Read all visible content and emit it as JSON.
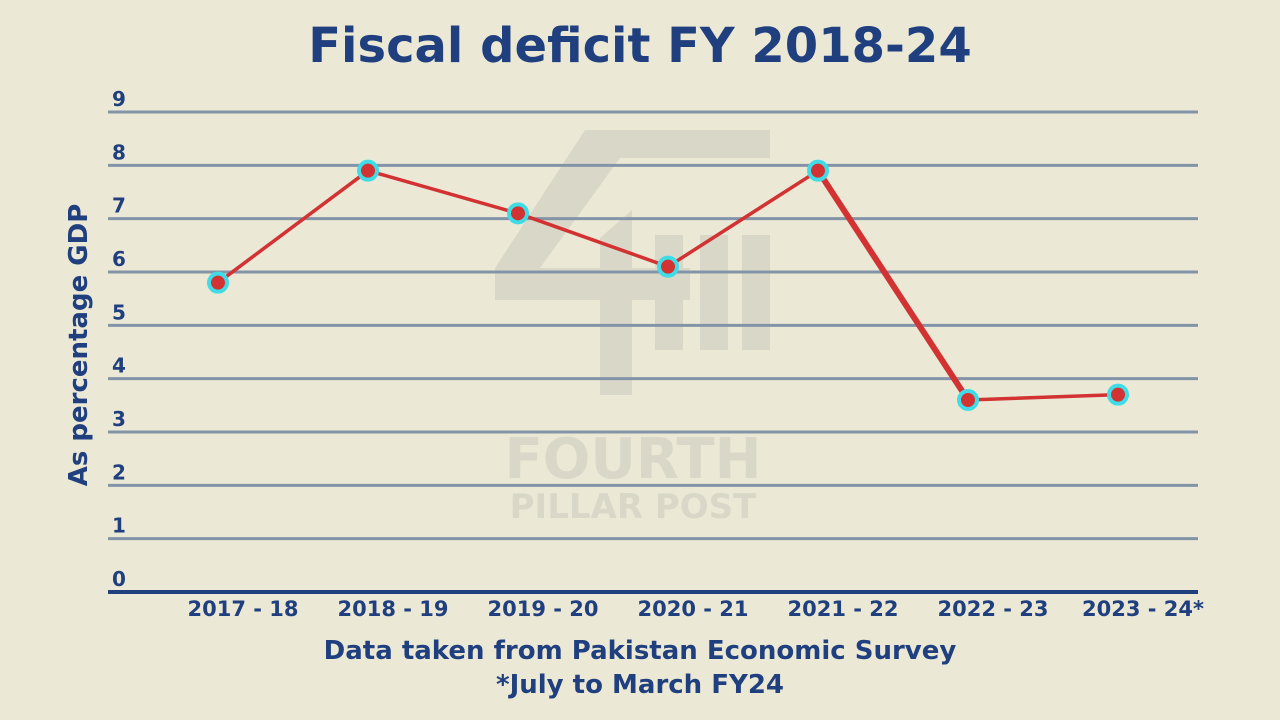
{
  "chart_data": {
    "type": "line",
    "title": "Fiscal deficit FY 2018-24",
    "ylabel": "As percentage GDP",
    "xlabel": "",
    "categories": [
      "2017 - 18",
      "2018 - 19",
      "2019 - 20",
      "2020 - 21",
      "2021 - 22",
      "2022 - 23",
      "2023 - 24*"
    ],
    "series": [
      {
        "values": [
          5.8,
          7.9,
          7.1,
          6.1,
          7.9,
          3.6,
          3.7
        ]
      }
    ],
    "ylim": [
      0,
      9
    ],
    "yticks": [
      "0",
      "1",
      "2",
      "3",
      "4",
      "5",
      "6",
      "7",
      "8",
      "9"
    ],
    "grid": true,
    "legend": "none"
  },
  "footer": {
    "source": "Data taken from Pakistan Economic Survey",
    "note": "*July to March FY24"
  },
  "watermark": {
    "line1": "FOURTH",
    "line2": "PILLAR POST"
  },
  "colors": {
    "background": "#ebe8d6",
    "text": "#1f3f7f",
    "grid": "#8494a8",
    "line": "#d23232",
    "marker_fill": "#d23232",
    "marker_ring": "#3fdce8"
  }
}
